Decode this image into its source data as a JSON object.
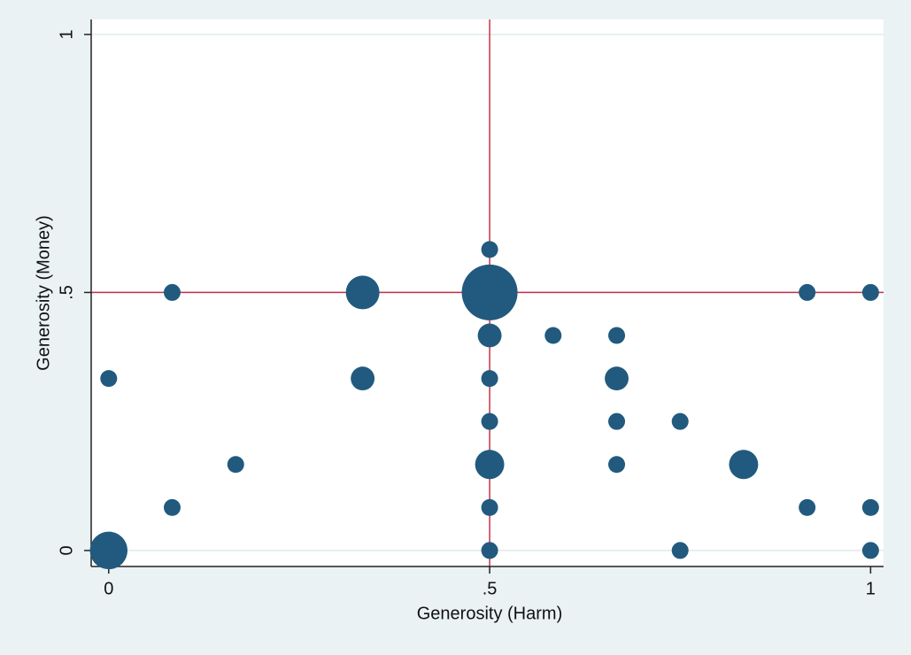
{
  "chart_data": {
    "type": "bubble",
    "x_label": "Generosity (Harm)",
    "y_label": "Generosity (Money)",
    "x": [
      0.5,
      0.0833,
      0.3333,
      0.5,
      0.9167,
      1,
      0.5,
      0.5833,
      0.6667,
      0,
      0.3333,
      0.5,
      0.6667,
      0.5,
      0.6667,
      0.75,
      0.1667,
      0.5,
      0.6667,
      0.8333,
      0.0833,
      0.5,
      0.9167,
      1,
      0,
      0.5,
      0.75,
      1
    ],
    "y": [
      0.5833,
      0.5,
      0.5,
      0.5,
      0.5,
      0.5,
      0.4167,
      0.4167,
      0.4167,
      0.3333,
      0.3333,
      0.3333,
      0.3333,
      0.25,
      0.25,
      0.25,
      0.1667,
      0.1667,
      0.1667,
      0.1667,
      0.0833,
      0.0833,
      0.0833,
      0.0833,
      0,
      0,
      0,
      0
    ],
    "sizes": [
      1,
      1,
      4,
      11,
      1,
      1,
      2,
      1,
      1,
      1,
      2,
      1,
      2,
      1,
      1,
      1,
      1,
      3,
      1,
      3,
      1,
      1,
      1,
      1,
      5,
      1,
      1,
      1
    ],
    "color": "#215a7e",
    "xlim": [
      -0.023,
      1.017
    ],
    "ylim": [
      -0.031,
      1.029
    ],
    "xticks": [
      0,
      {
        "value": 0.5,
        "label": ".5"
      },
      1
    ],
    "yticks": [
      0,
      {
        "value": 0.5,
        "label": ".5"
      },
      1
    ],
    "grid": true,
    "reference_lines": {
      "x": 0.5,
      "y": 0.5,
      "color": "#c8324a"
    }
  }
}
